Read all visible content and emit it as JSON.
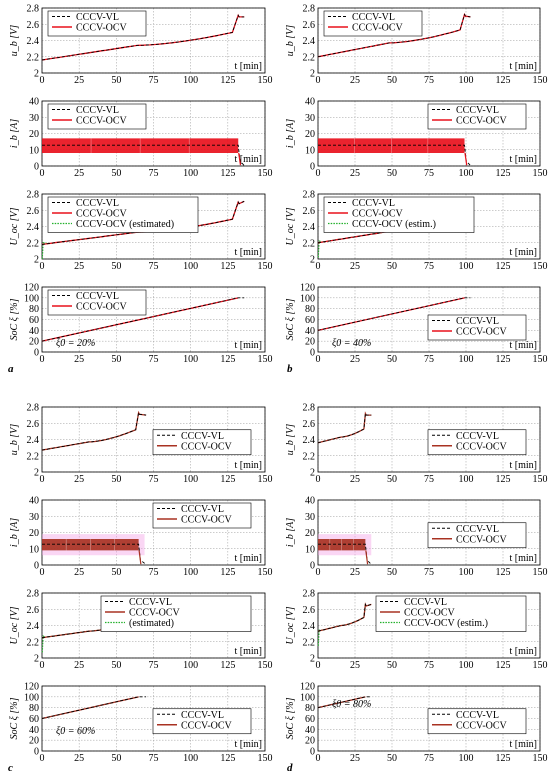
{
  "panel_letters": [
    "a",
    "b",
    "c",
    "d"
  ],
  "colors": {
    "vl": "#000000",
    "ocv_ab": "#e8101c",
    "ocv_cd": "#a83222",
    "est": "#22b02b",
    "band_ab": "#e8101c",
    "band_cd": "#a83222",
    "band_glow": "#f4a3e6",
    "grid": "#9a9a9a"
  },
  "chart_data": [
    {
      "id": "a",
      "type": "line",
      "ocv_color": "ocv_ab",
      "glow": false,
      "t_end": 132,
      "t_tail": 136,
      "xlim": [
        0,
        150
      ],
      "xticks": [
        "0",
        "25",
        "50",
        "75",
        "100",
        "125",
        "150"
      ],
      "plots": [
        {
          "ylabel": "u_b [V]",
          "ylim": [
            2,
            2.8
          ],
          "yticks": [
            "2",
            "2.2",
            "2.4",
            "2.6",
            "2.8"
          ],
          "xlabel": "t [min]",
          "legend": [
            "CCCV-VL",
            "CCCV-OCV"
          ],
          "legend_pos": "top-left",
          "series": {
            "start": 2.16,
            "mid": 2.34,
            "late": 2.5,
            "peak": 2.71,
            "tail": 2.69
          }
        },
        {
          "ylabel": "i_b [A]",
          "ylim": [
            0,
            40
          ],
          "yticks": [
            "0",
            "10",
            "20",
            "30",
            "40"
          ],
          "xlabel": "t [min]",
          "legend": [
            "CCCV-VL",
            "CCCV-OCV"
          ],
          "legend_pos": "top-left",
          "band": {
            "mean": 12.8,
            "low": 8,
            "high": 17
          }
        },
        {
          "ylabel": "U_oc [V]",
          "ylim": [
            2,
            2.8
          ],
          "yticks": [
            "2",
            "2.2",
            "2.4",
            "2.6",
            "2.8"
          ],
          "xlabel": "t [min]",
          "legend": [
            "CCCV-VL",
            "CCCV-OCV",
            "CCCV-OCV (estimated)"
          ],
          "legend_pos": "top-left",
          "series": {
            "start": 2.18,
            "mid": 2.33,
            "late": 2.49,
            "peak": 2.7,
            "tail": 2.71
          }
        },
        {
          "ylabel": "SoC ξ [%]",
          "ylim": [
            0,
            120
          ],
          "yticks": [
            "0",
            "20",
            "40",
            "60",
            "80",
            "100",
            "120"
          ],
          "xlabel": "t [min]",
          "legend": [
            "CCCV-VL",
            "CCCV-OCV"
          ],
          "legend_pos": "top-left",
          "soc": {
            "start": 20,
            "end": 100
          },
          "note": "ξ0 = 20%",
          "note_pos": "bottom-left"
        }
      ]
    },
    {
      "id": "b",
      "type": "line",
      "ocv_color": "ocv_ab",
      "glow": false,
      "t_end": 99,
      "t_tail": 103,
      "xlim": [
        0,
        150
      ],
      "xticks": [
        "0",
        "25",
        "50",
        "75",
        "100",
        "125",
        "150"
      ],
      "plots": [
        {
          "ylabel": "u_b [V]",
          "ylim": [
            2,
            2.8
          ],
          "yticks": [
            "2",
            "2.2",
            "2.4",
            "2.6",
            "2.8"
          ],
          "xlabel": "t [min]",
          "legend": [
            "CCCV-VL",
            "CCCV-OCV"
          ],
          "legend_pos": "top-left",
          "series": {
            "start": 2.2,
            "mid": 2.37,
            "late": 2.53,
            "peak": 2.72,
            "tail": 2.69
          }
        },
        {
          "ylabel": "i_b [A]",
          "ylim": [
            0,
            40
          ],
          "yticks": [
            "0",
            "10",
            "20",
            "30",
            "40"
          ],
          "xlabel": "t [min]",
          "legend": [
            "CCCV-VL",
            "CCCV-OCV"
          ],
          "legend_pos": "top-right",
          "band": {
            "mean": 12.8,
            "low": 8,
            "high": 17
          }
        },
        {
          "ylabel": "U_oc [V]",
          "ylim": [
            2,
            2.8
          ],
          "yticks": [
            "2",
            "2.2",
            "2.4",
            "2.6",
            "2.8"
          ],
          "xlabel": "t [min]",
          "legend": [
            "CCCV-VL",
            "CCCV-OCV",
            "CCCV-OCV (estim.)"
          ],
          "legend_pos": "top-left",
          "series": {
            "start": 2.2,
            "mid": 2.34,
            "late": 2.5,
            "peak": 2.7,
            "tail": 2.69
          }
        },
        {
          "ylabel": "SoC ξ [%]",
          "ylim": [
            0,
            120
          ],
          "yticks": [
            "0",
            "20",
            "40",
            "60",
            "80",
            "100",
            "120"
          ],
          "xlabel": "t [min]",
          "legend": [
            "CCCV-VL",
            "CCCV-OCV"
          ],
          "legend_pos": "bottom-right",
          "soc": {
            "start": 40,
            "end": 100
          },
          "note": "ξ0 = 40%",
          "note_pos": "bottom-left"
        }
      ]
    },
    {
      "id": "c",
      "type": "line",
      "ocv_color": "ocv_cd",
      "glow": true,
      "t_end": 65,
      "t_tail": 70,
      "xlim": [
        0,
        150
      ],
      "xticks": [
        "0",
        "25",
        "50",
        "75",
        "100",
        "125",
        "150"
      ],
      "plots": [
        {
          "ylabel": "u_b [V]",
          "ylim": [
            2,
            2.8
          ],
          "yticks": [
            "2",
            "2.2",
            "2.4",
            "2.6",
            "2.8"
          ],
          "xlabel": "t [min]",
          "legend": [
            "CCCV-VL",
            "CCCV-OCV"
          ],
          "legend_pos": "mid-right",
          "series": {
            "start": 2.27,
            "mid": 2.37,
            "late": 2.52,
            "peak": 2.73,
            "tail": 2.7
          }
        },
        {
          "ylabel": "i_b [A]",
          "ylim": [
            0,
            40
          ],
          "yticks": [
            "0",
            "10",
            "20",
            "30",
            "40"
          ],
          "xlabel": "t [min]",
          "legend": [
            "CCCV-VL",
            "CCCV-OCV"
          ],
          "legend_pos": "top-right",
          "band": {
            "mean": 12.8,
            "low": 9,
            "high": 16
          }
        },
        {
          "ylabel": "U_oc [V]",
          "ylim": [
            2,
            2.8
          ],
          "yticks": [
            "2",
            "2.2",
            "2.4",
            "2.6",
            "2.8"
          ],
          "xlabel": "t [min]",
          "legend": [
            "CCCV-VL",
            "CCCV-OCV",
            "(estimated)"
          ],
          "legend_pos": "top-right",
          "legend_third_prefix": "CCCV-OCV",
          "series": {
            "start": 2.25,
            "mid": 2.33,
            "late": 2.47,
            "peak": 2.7,
            "tail": 2.68
          }
        },
        {
          "ylabel": "SoC ξ [%]",
          "ylim": [
            0,
            120
          ],
          "yticks": [
            "0",
            "20",
            "40",
            "60",
            "80",
            "100",
            "120"
          ],
          "xlabel": "t [min]",
          "legend": [
            "CCCV-VL",
            "CCCV-OCV"
          ],
          "legend_pos": "mid-right",
          "soc": {
            "start": 60,
            "end": 100
          },
          "note": "ξ0 = 60%",
          "note_pos": "mid-left"
        }
      ]
    },
    {
      "id": "d",
      "type": "line",
      "ocv_color": "ocv_cd",
      "glow": true,
      "t_end": 32,
      "t_tail": 36,
      "xlim": [
        0,
        150
      ],
      "xticks": [
        "0",
        "25",
        "50",
        "75",
        "100",
        "125",
        "150"
      ],
      "plots": [
        {
          "ylabel": "u_b [V]",
          "ylim": [
            2,
            2.8
          ],
          "yticks": [
            "2",
            "2.2",
            "2.4",
            "2.6",
            "2.8"
          ],
          "xlabel": "t [min]",
          "legend": [
            "CCCV-VL",
            "CCCV-OCV"
          ],
          "legend_pos": "mid-right",
          "series": {
            "start": 2.36,
            "mid": 2.43,
            "late": 2.53,
            "peak": 2.72,
            "tail": 2.7
          }
        },
        {
          "ylabel": "i_b [A]",
          "ylim": [
            0,
            40
          ],
          "yticks": [
            "0",
            "10",
            "20",
            "30",
            "40"
          ],
          "xlabel": "t [min]",
          "legend": [
            "CCCV-VL",
            "CCCV-OCV"
          ],
          "legend_pos": "mid-right",
          "band": {
            "mean": 12.8,
            "low": 9,
            "high": 16
          }
        },
        {
          "ylabel": "U_oc [V]",
          "ylim": [
            2,
            2.8
          ],
          "yticks": [
            "2",
            "2.2",
            "2.4",
            "2.6",
            "2.8"
          ],
          "xlabel": "t [min]",
          "legend": [
            "CCCV-VL",
            "CCCV-OCV",
            "CCCV-OCV (estim.)"
          ],
          "legend_pos": "top-right",
          "series": {
            "start": 2.33,
            "mid": 2.4,
            "late": 2.5,
            "peak": 2.66,
            "tail": 2.66
          }
        },
        {
          "ylabel": "SoC ξ [%]",
          "ylim": [
            0,
            120
          ],
          "yticks": [
            "0",
            "20",
            "40",
            "60",
            "80",
            "100",
            "120"
          ],
          "xlabel": "t [min]",
          "legend": [
            "CCCV-VL",
            "CCCV-OCV"
          ],
          "legend_pos": "mid-right",
          "soc": {
            "start": 80,
            "end": 100
          },
          "note": "ξ0 = 80%",
          "note_pos": "top-left"
        }
      ]
    }
  ]
}
